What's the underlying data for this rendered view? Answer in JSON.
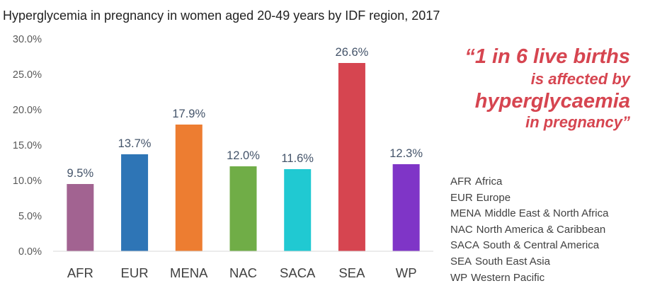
{
  "chart_data": {
    "type": "bar",
    "title": "Hyperglycemia in pregnancy in women aged 20-49 years by IDF region, 2017",
    "categories": [
      "AFR",
      "EUR",
      "MENA",
      "NAC",
      "SACA",
      "SEA",
      "WP"
    ],
    "values": [
      9.5,
      13.7,
      17.9,
      12.0,
      11.6,
      26.6,
      12.3
    ],
    "value_labels": [
      "9.5%",
      "13.7%",
      "17.9%",
      "12.0%",
      "11.6%",
      "26.6%",
      "12.3%"
    ],
    "colors": [
      "#a26391",
      "#2e75b6",
      "#ed7d31",
      "#70ad47",
      "#20c9d2",
      "#d64550",
      "#7f35c7"
    ],
    "ylim": [
      0,
      30
    ],
    "yticks": [
      0,
      5,
      10,
      15,
      20,
      25,
      30
    ],
    "ytick_labels": [
      "0.0%",
      "5.0%",
      "10.0%",
      "15.0%",
      "20.0%",
      "25.0%",
      "30.0%"
    ],
    "xlabel": "",
    "ylabel": "",
    "grid": false
  },
  "quote": {
    "line1": "“1 in 6 live births",
    "line2": "is affected by",
    "line3": "hyperglycaemia",
    "line4": "in pregnancy”",
    "color": "#d64550"
  },
  "legend": [
    {
      "code": "AFR",
      "name": "Africa"
    },
    {
      "code": "EUR",
      "name": "Europe"
    },
    {
      "code": "MENA",
      "name": "Middle East & North Africa"
    },
    {
      "code": "NAC",
      "name": "North America & Caribbean"
    },
    {
      "code": "SACA",
      "name": "South & Central America"
    },
    {
      "code": "SEA",
      "name": "South East Asia"
    },
    {
      "code": "WP",
      "name": "Western Pacific"
    }
  ]
}
